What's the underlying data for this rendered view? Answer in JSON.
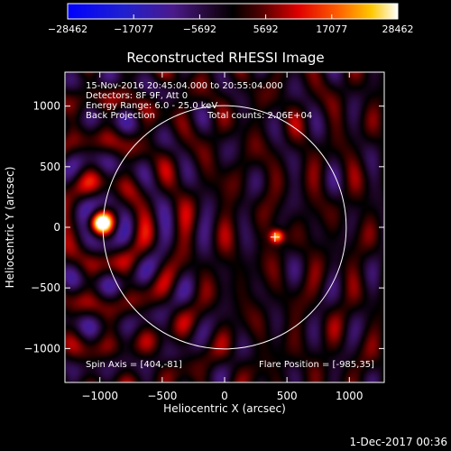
{
  "chart_data": {
    "type": "heatmap",
    "title": "Reconstructed RHESSI Image",
    "xlabel": "Heliocentric X (arcsec)",
    "ylabel": "Heliocentric Y (arcsec)",
    "xlim": [
      -1280,
      1280
    ],
    "ylim": [
      -1280,
      1280
    ],
    "xticks": [
      -1000,
      -500,
      0,
      500,
      1000
    ],
    "yticks": [
      -1000,
      -500,
      0,
      500,
      1000
    ],
    "xtick_labels": [
      "−1000",
      "−500",
      "0",
      "500",
      "1000"
    ],
    "ytick_labels": [
      "−1000",
      "−500",
      "0",
      "500",
      "1000"
    ],
    "colorbar": {
      "min": -28462,
      "max": 28462,
      "ticks": [
        -28462,
        -17077,
        -5692,
        5692,
        17077,
        28462
      ],
      "tick_labels": [
        "−28462",
        "−17077",
        "−5692",
        "5692",
        "17077",
        "28462"
      ]
    },
    "solar_disk": {
      "center": [
        0,
        0
      ],
      "radius": 975
    },
    "sources": [
      {
        "x": -985,
        "y": 35,
        "amplitude": 28462,
        "sigma": 60
      },
      {
        "x": 420,
        "y": -75,
        "amplitude": 22000,
        "sigma": 40
      }
    ],
    "marker": {
      "x": 404,
      "y": -81
    },
    "annotations": {
      "time_range": "15-Nov-2016 20:45:04.000 to 20:55:04.000",
      "detectors": "Detectors: 8F 9F, Att 0",
      "energy_range": "Energy Range: 6.0 - 25.0 keV",
      "method": "Back Projection",
      "total_counts": "Total counts: 2.06E+04",
      "spin_axis": "Spin Axis = [404,-81]",
      "flare_position": "Flare Position = [-985,35]"
    },
    "footer_timestamp": "1-Dec-2017 00:36"
  }
}
